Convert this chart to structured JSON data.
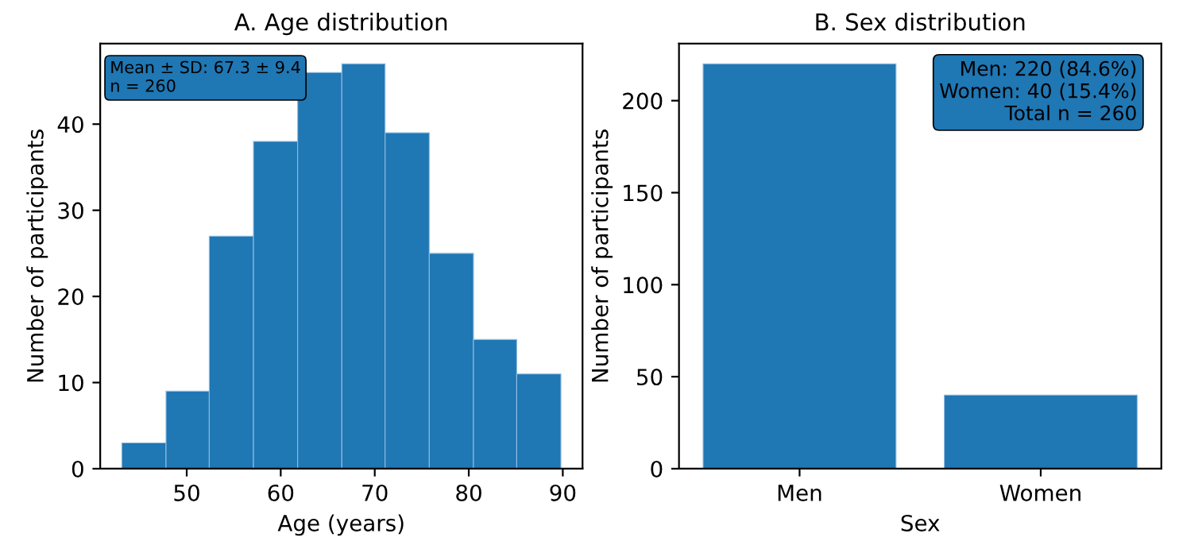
{
  "chart_data": [
    {
      "type": "histogram",
      "title": "A. Age distribution",
      "xlabel": "Age (years)",
      "ylabel": "Number of participants",
      "color": "#1f77b4",
      "bins": [
        43.1,
        47.8,
        52.4,
        57.1,
        61.8,
        66.5,
        71.1,
        75.8,
        80.5,
        85.1,
        89.8
      ],
      "values": [
        3,
        9,
        27,
        38,
        46,
        47,
        39,
        25,
        15,
        11
      ],
      "xlim": [
        40.8,
        92.1
      ],
      "xticks": [
        50,
        60,
        70,
        80,
        90
      ],
      "ylim": [
        0,
        49.35
      ],
      "yticks": [
        0,
        10,
        20,
        30,
        40
      ],
      "annotations": [
        "Mean ± SD: 67.3 ± 9.4\nn = 260"
      ],
      "grid": false,
      "legend": false
    },
    {
      "type": "bar",
      "title": "B. Sex distribution",
      "xlabel": "Sex",
      "ylabel": "Number of participants",
      "color": "#1f77b4",
      "categories": [
        "Men",
        "Women"
      ],
      "values": [
        220,
        40
      ],
      "ylim": [
        0,
        231
      ],
      "yticks": [
        0,
        50,
        100,
        150,
        200
      ],
      "annotations": [
        "Men: 220 (84.6%)\nWomen: 40 (15.4%)\nTotal n = 260"
      ],
      "grid": false,
      "legend": false
    }
  ]
}
